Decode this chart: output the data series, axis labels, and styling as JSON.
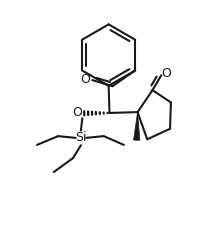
{
  "background": "#ffffff",
  "line_color": "#1a1a1a",
  "line_width": 1.5,
  "fig_width": 2.12,
  "fig_height": 2.47,
  "dpi": 100,
  "xlim": [
    0.0,
    10.5
  ],
  "ylim": [
    -1.5,
    12.5
  ]
}
